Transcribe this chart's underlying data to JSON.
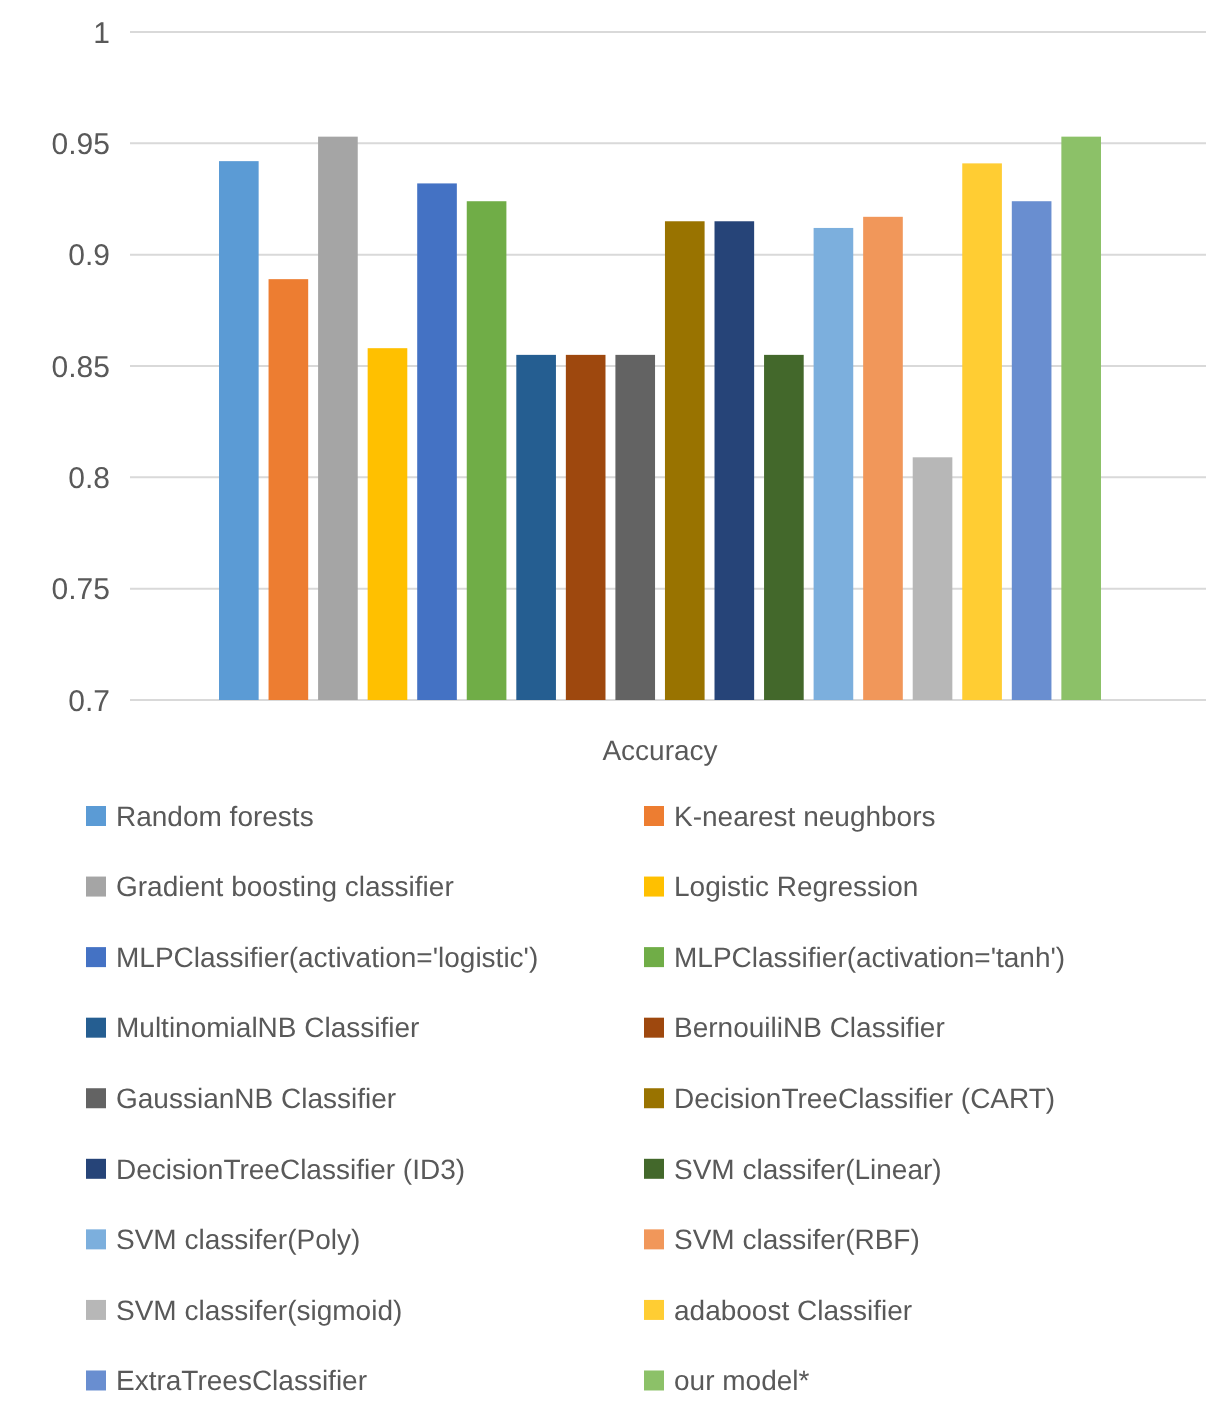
{
  "chart_data": {
    "type": "bar",
    "categories": [
      "Accuracy"
    ],
    "ylim": [
      0.7,
      1
    ],
    "yticks": [
      0.7,
      0.75,
      0.8,
      0.85,
      0.9,
      0.95,
      1
    ],
    "grid": "y",
    "legend": "bottom",
    "series": [
      {
        "name": "Random forests",
        "color": "#5b9bd5",
        "values": [
          0.942
        ]
      },
      {
        "name": "K-nearest neughbors",
        "color": "#ed7d31",
        "values": [
          0.889
        ]
      },
      {
        "name": "Gradient boosting classifier",
        "color": "#a5a5a5",
        "values": [
          0.953
        ]
      },
      {
        "name": "Logistic Regression",
        "color": "#ffc000",
        "values": [
          0.858
        ]
      },
      {
        "name": "MLPClassifier(activation='logistic')",
        "color": "#4472c4",
        "values": [
          0.932
        ]
      },
      {
        "name": "MLPClassifier(activation='tanh')",
        "color": "#70ad47",
        "values": [
          0.924
        ]
      },
      {
        "name": "MultinomialNB  Classifier",
        "color": "#255e91",
        "values": [
          0.855
        ]
      },
      {
        "name": "BernouiliNB Classifier",
        "color": "#9e480e",
        "values": [
          0.855
        ]
      },
      {
        "name": "GaussianNB Classifier",
        "color": "#636363",
        "values": [
          0.855
        ]
      },
      {
        "name": "DecisionTreeClassifier (CART)",
        "color": "#997300",
        "values": [
          0.915
        ]
      },
      {
        "name": "DecisionTreeClassifier (ID3)",
        "color": "#264478",
        "values": [
          0.915
        ]
      },
      {
        "name": "SVM classifer(Linear)",
        "color": "#43682b",
        "values": [
          0.855
        ]
      },
      {
        "name": "SVM classifer(Poly)",
        "color": "#7cafdd",
        "values": [
          0.912
        ]
      },
      {
        "name": "SVM classifer(RBF)",
        "color": "#f1975a",
        "values": [
          0.917
        ]
      },
      {
        "name": "SVM classifer(sigmoid)",
        "color": "#b7b7b7",
        "values": [
          0.809
        ]
      },
      {
        "name": "adaboost Classifier",
        "color": "#ffcd33",
        "values": [
          0.941
        ]
      },
      {
        "name": "ExtraTreesClassifier",
        "color": "#698ed0",
        "values": [
          0.924
        ]
      },
      {
        "name": "our model*",
        "color": "#8cc168",
        "values": [
          0.953
        ]
      }
    ]
  }
}
